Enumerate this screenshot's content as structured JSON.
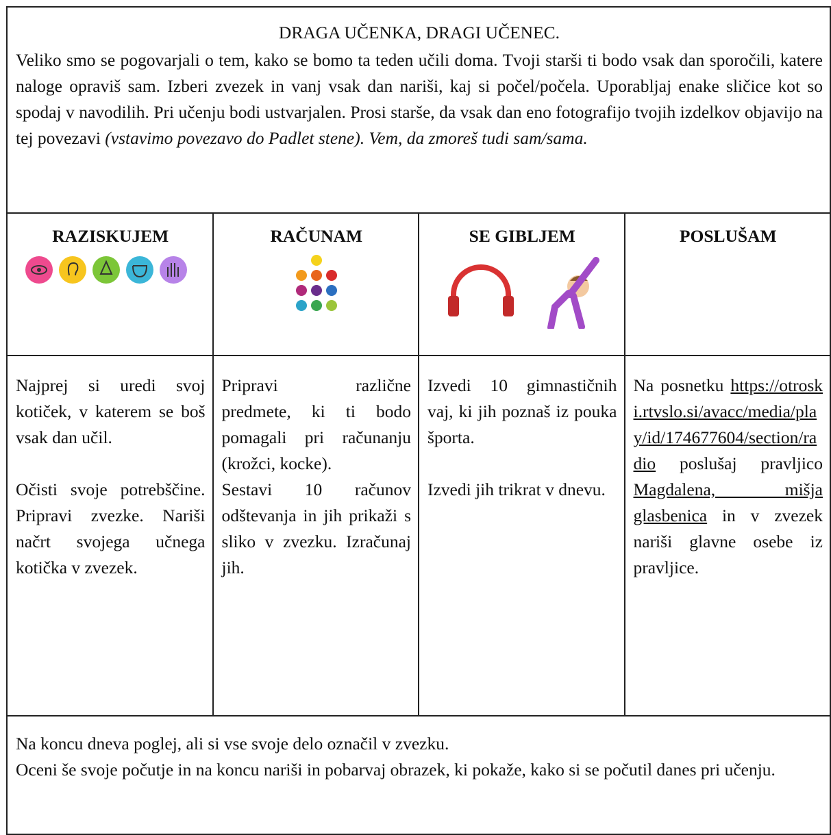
{
  "header": {
    "title": "DRAGA UČENKA, DRAGI UČENEC.",
    "text": "Veliko smo se pogovarjali o tem, kako se bomo ta teden učili doma. Tvoji starši ti bodo vsak dan sporočili, katere naloge opraviš sam. Izberi zvezek in vanj vsak dan nariši, kaj si počel/počela. Uporabljaj enake sličice kot so spodaj v navodilih. Pri učenju bodi ustvarjalen. Prosi starše, da vsak dan eno fotografijo tvojih izdelkov objavijo na tej povezavi",
    "italic": "(vstavimo povezavo do Padlet stene). Vem, da zmoreš tudi sam/sama."
  },
  "columns": [
    {
      "heading": "RAZISKUJEM",
      "paragraphs": [
        "Najprej si uredi svoj kotiček, v katerem se boš vsak dan učil.",
        "Očisti svoje potrebščine. Pripravi zvezke. Nariši načrt svojega učnega kotička v zvezek."
      ]
    },
    {
      "heading": "RAČUNAM",
      "paragraphs": [
        "Pripravi različne predmete, ki ti bodo pomagali pri računanju (krožci, kocke).",
        "Sestavi 10 računov odštevanja in jih prikaži s sliko v zvezku. Izračunaj jih."
      ]
    },
    {
      "heading": "SE GIBLJEM",
      "paragraphs": [
        "Izvedi 10 gimnastičnih vaj, ki jih poznaš iz pouka športa.",
        "Izvedi jih trikrat v dnevu."
      ]
    },
    {
      "heading": "POSLUŠAM",
      "parts": [
        "Na posnetku",
        "https://otroski.rtvslo.si/avacc/media/play/id/174677604/section/radio",
        "poslušaj pravljico",
        "Magdalena, mišja glasbenica",
        "in v zvezek nariši glavne osebe iz pravljice."
      ]
    }
  ],
  "footer": {
    "lines": [
      "Na koncu dneva poglej, ali si vse svoje delo označil v zvezku.",
      "Oceni še svoje počutje in na koncu nariši in pobarvaj obrazek, ki pokaže, kako si se počutil danes pri učenju."
    ]
  }
}
